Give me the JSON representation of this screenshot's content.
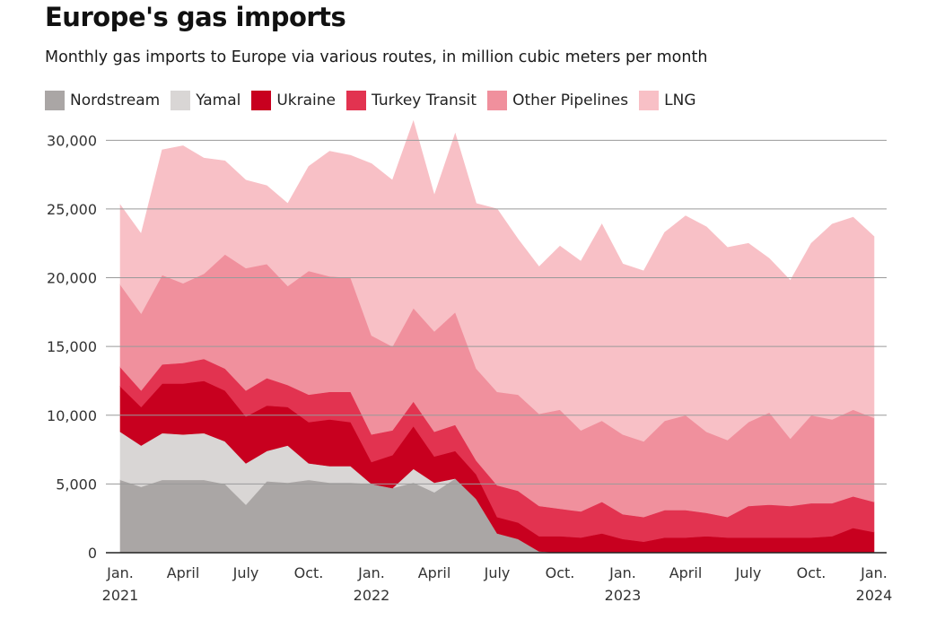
{
  "title": "Europe's gas imports",
  "subtitle": "Monthly gas imports to Europe via various routes, in million cubic meters per month",
  "chart_data": {
    "type": "area",
    "stacked": true,
    "x": [
      "Jan. 2021",
      "Feb. 2021",
      "Mar. 2021",
      "Apr. 2021",
      "May 2021",
      "Jun. 2021",
      "Jul. 2021",
      "Aug. 2021",
      "Sep. 2021",
      "Oct. 2021",
      "Nov. 2021",
      "Dec. 2021",
      "Jan. 2022",
      "Feb. 2022",
      "Mar. 2022",
      "Apr. 2022",
      "May 2022",
      "Jun. 2022",
      "Jul. 2022",
      "Aug. 2022",
      "Sep. 2022",
      "Oct. 2022",
      "Nov. 2022",
      "Dec. 2022",
      "Jan. 2023",
      "Feb. 2023",
      "Mar. 2023",
      "Apr. 2023",
      "May 2023",
      "Jun. 2023",
      "Jul. 2023",
      "Aug. 2023",
      "Sep. 2023",
      "Oct. 2023",
      "Nov. 2023",
      "Dec. 2023",
      "Jan. 2024"
    ],
    "series": [
      {
        "name": "Nordstream",
        "color": "#aaa6a5",
        "values": [
          5300,
          4800,
          5300,
          5300,
          5300,
          5000,
          3500,
          5200,
          5100,
          5300,
          5100,
          5100,
          5000,
          4700,
          5100,
          4400,
          5400,
          3900,
          1400,
          1000,
          100,
          0,
          0,
          0,
          0,
          0,
          0,
          0,
          0,
          0,
          0,
          0,
          0,
          0,
          0,
          0,
          0
        ]
      },
      {
        "name": "Yamal",
        "color": "#d9d6d5",
        "values": [
          3500,
          3000,
          3400,
          3300,
          3400,
          3100,
          3000,
          2200,
          2700,
          1200,
          1200,
          1200,
          0,
          0,
          1000,
          700,
          0,
          0,
          0,
          0,
          0,
          0,
          0,
          0,
          0,
          0,
          0,
          0,
          0,
          0,
          0,
          0,
          0,
          0,
          0,
          0,
          0
        ]
      },
      {
        "name": "Ukraine",
        "color": "#c8001f",
        "values": [
          3300,
          2800,
          3600,
          3700,
          3800,
          3700,
          3400,
          3300,
          2800,
          3000,
          3400,
          3200,
          1600,
          2400,
          3100,
          1900,
          2000,
          1800,
          1200,
          1200,
          1100,
          1200,
          1100,
          1400,
          1000,
          800,
          1100,
          1100,
          1200,
          1100,
          1100,
          1100,
          1100,
          1100,
          1200,
          1800,
          1500
        ]
      },
      {
        "name": "Turkey Transit",
        "color": "#e23350",
        "values": [
          1400,
          1200,
          1400,
          1500,
          1600,
          1600,
          1900,
          2000,
          1600,
          2000,
          2000,
          2200,
          2000,
          1800,
          1800,
          1800,
          1900,
          1000,
          2300,
          2300,
          2200,
          2000,
          1900,
          2300,
          1800,
          1800,
          2000,
          2000,
          1700,
          1500,
          2300,
          2400,
          2300,
          2500,
          2400,
          2300,
          2200
        ]
      },
      {
        "name": "Other Pipelines",
        "color": "#f0909d",
        "values": [
          6000,
          5600,
          6500,
          5800,
          6200,
          8300,
          8900,
          8300,
          7200,
          9000,
          8400,
          8300,
          7200,
          6100,
          6800,
          7300,
          8200,
          6700,
          6800,
          7000,
          6700,
          7200,
          5900,
          5900,
          5800,
          5500,
          6500,
          6900,
          5900,
          5600,
          6100,
          6700,
          4900,
          6400,
          6100,
          6300,
          6100
        ]
      },
      {
        "name": "LNG",
        "color": "#f8c0c6",
        "values": [
          5800,
          5800,
          9100,
          10000,
          8400,
          6800,
          6400,
          5700,
          6000,
          7600,
          9100,
          8900,
          12500,
          12100,
          13600,
          9900,
          13000,
          12000,
          13300,
          11300,
          10700,
          11900,
          12300,
          14300,
          12400,
          12400,
          13700,
          14500,
          14900,
          14000,
          13000,
          11200,
          11500,
          12500,
          14200,
          14000,
          13200
        ]
      }
    ],
    "ylim": [
      0,
      31000
    ],
    "yticks": [
      "0",
      "5,000",
      "10,000",
      "15,000",
      "20,000",
      "25,000",
      "30,000"
    ],
    "xticks": [
      {
        "line1": "Jan.",
        "line2": "2021",
        "index": 0
      },
      {
        "line1": "April",
        "line2": "",
        "index": 3
      },
      {
        "line1": "July",
        "line2": "",
        "index": 6
      },
      {
        "line1": "Oct.",
        "line2": "",
        "index": 9
      },
      {
        "line1": "Jan.",
        "line2": "2022",
        "index": 12
      },
      {
        "line1": "April",
        "line2": "",
        "index": 15
      },
      {
        "line1": "July",
        "line2": "",
        "index": 18
      },
      {
        "line1": "Oct.",
        "line2": "",
        "index": 21
      },
      {
        "line1": "Jan.",
        "line2": "2023",
        "index": 24
      },
      {
        "line1": "April",
        "line2": "",
        "index": 27
      },
      {
        "line1": "July",
        "line2": "",
        "index": 30
      },
      {
        "line1": "Oct.",
        "line2": "",
        "index": 33
      },
      {
        "line1": "Jan.",
        "line2": "2024",
        "index": 36
      }
    ],
    "grid": true,
    "legend_position": "top-left"
  }
}
